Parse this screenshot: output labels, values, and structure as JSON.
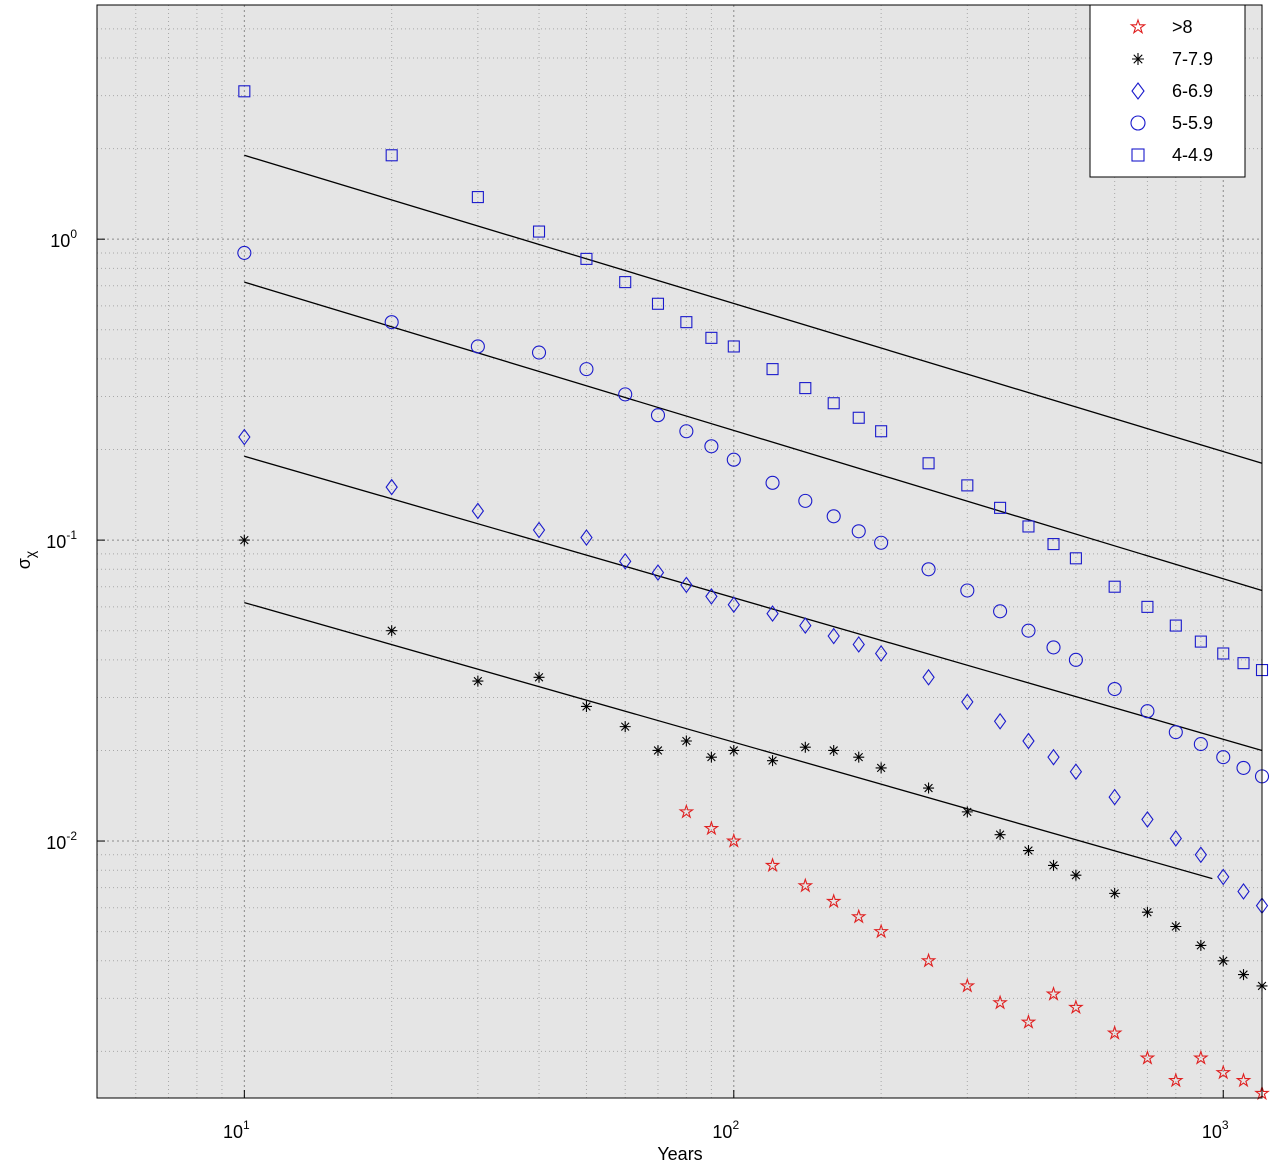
{
  "chart_data": {
    "type": "scatter",
    "xlabel": "Years",
    "ylabel": "σ",
    "ylabel_sub": "χ",
    "xscale": "log",
    "yscale": "log",
    "grid": true,
    "legend": "top-right",
    "xlim": [
      5,
      1200
    ],
    "ylim": [
      0.0014,
      6
    ],
    "xticks": [
      {
        "value": 10,
        "label": "10",
        "exponent": "1"
      },
      {
        "value": 100,
        "label": "10",
        "exponent": "2"
      },
      {
        "value": 1000,
        "label": "10",
        "exponent": "3"
      }
    ],
    "yticks": [
      {
        "value": 0.01,
        "label": "10",
        "exponent": "-2"
      },
      {
        "value": 0.1,
        "label": "10",
        "exponent": "-1"
      },
      {
        "value": 1,
        "label": "10",
        "exponent": "0"
      }
    ],
    "xminorticks": [
      6,
      7,
      8,
      9,
      20,
      30,
      40,
      50,
      60,
      70,
      80,
      90,
      200,
      300,
      400,
      500,
      600,
      700,
      800,
      900
    ],
    "yminorticks": [
      0.002,
      0.003,
      0.004,
      0.005,
      0.006,
      0.007,
      0.008,
      0.009,
      0.02,
      0.03,
      0.04,
      0.05,
      0.06,
      0.07,
      0.08,
      0.09,
      0.2,
      0.3,
      0.4,
      0.5,
      0.6,
      0.7,
      0.8,
      0.9,
      2,
      3,
      4,
      5
    ],
    "x": [
      10,
      20,
      30,
      40,
      50,
      60,
      70,
      80,
      90,
      100,
      120,
      140,
      160,
      180,
      200,
      250,
      300,
      350,
      400,
      450,
      500,
      600,
      700,
      800,
      900,
      1000,
      1100,
      1200
    ],
    "series": [
      {
        "name": ">8",
        "color": "#e02020",
        "marker": "star",
        "values": [
          null,
          null,
          null,
          null,
          null,
          null,
          null,
          0.0125,
          0.011,
          0.01,
          0.0083,
          0.0071,
          0.0063,
          0.0056,
          0.005,
          0.004,
          0.0033,
          0.0029,
          0.0025,
          0.0031,
          0.0028,
          0.0023,
          0.0019,
          0.0016,
          0.0019,
          0.0017,
          0.0016,
          0.00145
        ]
      },
      {
        "name": "7-7.9",
        "color": "#000000",
        "marker": "asterisk",
        "values": [
          0.1,
          0.05,
          0.034,
          0.035,
          0.028,
          0.024,
          0.02,
          0.0215,
          0.019,
          0.02,
          0.0185,
          0.0205,
          0.02,
          0.019,
          0.0175,
          0.015,
          0.0125,
          0.0105,
          0.0093,
          0.0083,
          0.0077,
          0.0067,
          0.0058,
          0.0052,
          0.0045,
          0.004,
          0.0036,
          0.0033
        ]
      },
      {
        "name": "6-6.9",
        "color": "#1a1acc",
        "marker": "diamond",
        "values": [
          0.22,
          0.15,
          0.125,
          0.108,
          0.102,
          0.085,
          0.078,
          0.071,
          0.065,
          0.061,
          0.057,
          0.052,
          0.048,
          0.045,
          0.042,
          0.035,
          0.029,
          0.025,
          0.0215,
          0.019,
          0.017,
          0.014,
          0.0118,
          0.0102,
          0.009,
          0.0076,
          0.0068,
          0.0061
        ]
      },
      {
        "name": "5-5.9",
        "color": "#1a1acc",
        "marker": "circle",
        "values": [
          0.9,
          0.53,
          0.44,
          0.42,
          0.37,
          0.305,
          0.26,
          0.23,
          0.205,
          0.185,
          0.155,
          0.135,
          0.12,
          0.107,
          0.098,
          0.08,
          0.068,
          0.058,
          0.05,
          0.044,
          0.04,
          0.032,
          0.027,
          0.023,
          0.021,
          0.019,
          0.0175,
          0.0164
        ]
      },
      {
        "name": "4-4.9",
        "color": "#1a1acc",
        "marker": "square",
        "values": [
          3.1,
          1.9,
          1.38,
          1.06,
          0.86,
          0.72,
          0.61,
          0.53,
          0.47,
          0.44,
          0.37,
          0.32,
          0.285,
          0.255,
          0.23,
          0.18,
          0.152,
          0.128,
          0.111,
          0.097,
          0.087,
          0.07,
          0.06,
          0.052,
          0.046,
          0.042,
          0.039,
          0.037
        ]
      }
    ],
    "fit_lines": [
      {
        "color": "#000000",
        "x": [
          10,
          1200
        ],
        "values": [
          1.9,
          0.18
        ]
      },
      {
        "color": "#000000",
        "x": [
          10,
          1200
        ],
        "values": [
          0.72,
          0.068
        ]
      },
      {
        "color": "#000000",
        "x": [
          10,
          1200
        ],
        "values": [
          0.19,
          0.02
        ]
      },
      {
        "color": "#000000",
        "x": [
          10,
          950
        ],
        "values": [
          0.062,
          0.0075
        ]
      }
    ]
  }
}
